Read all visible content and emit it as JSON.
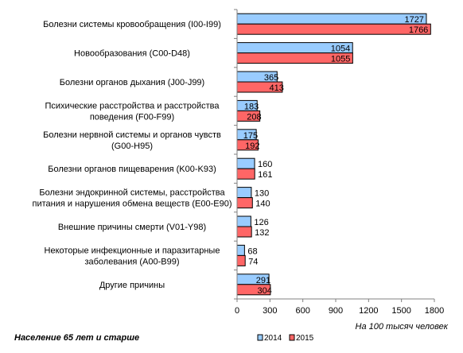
{
  "chart_data": {
    "type": "bar",
    "orientation": "horizontal",
    "categories": [
      [
        "Болезни системы кровообращения (I00-I99)"
      ],
      [
        "Новообразования (C00-D48)"
      ],
      [
        "Болезни органов дыхания (J00-J99)"
      ],
      [
        "Психические расстройства и расстройства",
        "поведения (F00-F99)"
      ],
      [
        "Болезни нервной системы и органов чувств",
        "(G00-H95)"
      ],
      [
        "Болезни органов пищеварения (K00-K93)"
      ],
      [
        "Болезни эндокринной системы, расстройства",
        "питания и нарушения обмена веществ  (E00-E90)"
      ],
      [
        "Внешние причины смерти (V01-Y98)"
      ],
      [
        "Некоторые инфекционные и паразитарные",
        "заболевания (A00-B99)"
      ],
      [
        "Другие  причины"
      ]
    ],
    "series": [
      {
        "name": "2014",
        "color": "#99ccff",
        "values": [
          1727,
          1054,
          365,
          183,
          175,
          160,
          130,
          126,
          68,
          291
        ]
      },
      {
        "name": "2015",
        "color": "#ff6666",
        "values": [
          1766,
          1055,
          413,
          208,
          192,
          161,
          140,
          132,
          74,
          304
        ]
      }
    ],
    "xlim": [
      0,
      1800
    ],
    "xticks": [
      0,
      300,
      600,
      900,
      1200,
      1500,
      1800
    ],
    "xlabel": "На 100 тысяч человек",
    "legend_position": "bottom",
    "grid": false
  },
  "footer": "Население 65 лет и старше"
}
